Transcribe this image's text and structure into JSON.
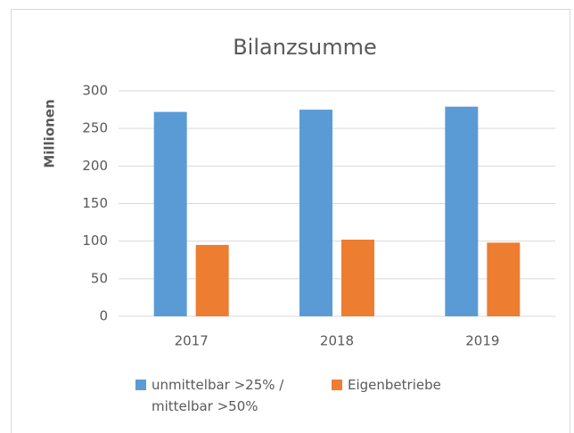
{
  "chart_data": {
    "type": "bar",
    "title": "Bilanzsumme",
    "y_label": "Millionen",
    "categories": [
      "2017",
      "2018",
      "2019"
    ],
    "series": [
      {
        "name": "unmittelbar >25% / mittelbar >50%",
        "color": "#5b9bd5",
        "values": [
          272,
          275,
          279
        ]
      },
      {
        "name": "Eigenbetriebe",
        "color": "#ed7d31",
        "values": [
          95,
          102,
          98
        ]
      }
    ],
    "ylim": [
      0,
      300
    ],
    "yticks": [
      0,
      50,
      100,
      150,
      200,
      250,
      300
    ],
    "grid": true,
    "legend": "bottom"
  }
}
